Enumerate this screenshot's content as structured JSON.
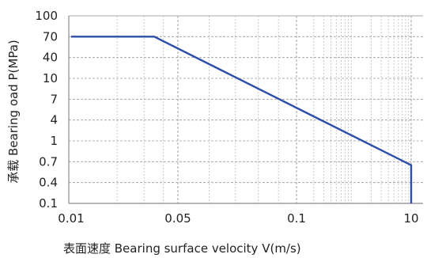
{
  "chart_data": {
    "type": "line",
    "title": "",
    "xlabel": "表面速度 Bearing surface velocity V(m/s)",
    "ylabel": "承载 Bearing oad P(MPa)",
    "x_tick_labels": [
      "0.01",
      "0.05",
      "0.1",
      "10"
    ],
    "y_tick_labels": [
      "100",
      "70",
      "40",
      "10",
      "7",
      "4",
      "1",
      "0.7",
      "0.4",
      "0.1"
    ],
    "x_scale": "categorical-log-style",
    "y_scale": "categorical-log-style",
    "grid": true,
    "legend": "none",
    "series": [
      {
        "color": "#2b4fa8",
        "points": [
          {
            "x": "0.01",
            "y": "70"
          },
          {
            "x": 0.035,
            "y": "70"
          },
          {
            "x": "10",
            "y": 0.65
          },
          {
            "x": "10",
            "y": "0.1"
          }
        ]
      }
    ],
    "colors": {
      "line": "#2b4fa8",
      "major_grid": "#9a9a9a",
      "minor_grid": "#b5b5b5",
      "axis": "#8c8c8c"
    }
  }
}
